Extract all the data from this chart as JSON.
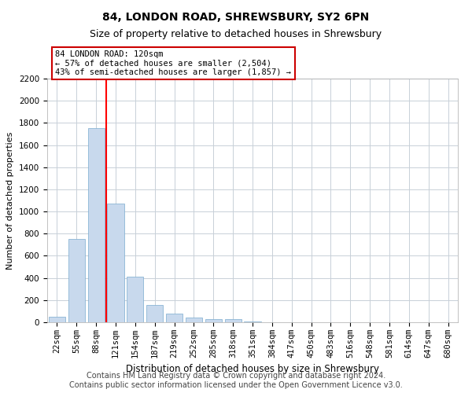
{
  "title": "84, LONDON ROAD, SHREWSBURY, SY2 6PN",
  "subtitle": "Size of property relative to detached houses in Shrewsbury",
  "xlabel": "Distribution of detached houses by size in Shrewsbury",
  "ylabel": "Number of detached properties",
  "bin_labels": [
    "22sqm",
    "55sqm",
    "88sqm",
    "121sqm",
    "154sqm",
    "187sqm",
    "219sqm",
    "252sqm",
    "285sqm",
    "318sqm",
    "351sqm",
    "384sqm",
    "417sqm",
    "450sqm",
    "483sqm",
    "516sqm",
    "548sqm",
    "581sqm",
    "614sqm",
    "647sqm",
    "680sqm"
  ],
  "bar_values": [
    50,
    750,
    1750,
    1075,
    415,
    155,
    80,
    40,
    30,
    25,
    5,
    2,
    2,
    0,
    0,
    0,
    0,
    0,
    0,
    0,
    0
  ],
  "bar_color": "#c8d9ed",
  "bar_edge_color": "#7aabcf",
  "red_line_index": 2.5,
  "annotation_line1": "84 LONDON ROAD: 120sqm",
  "annotation_line2": "← 57% of detached houses are smaller (2,504)",
  "annotation_line3": "43% of semi-detached houses are larger (1,857) →",
  "annotation_box_color": "#ffffff",
  "annotation_box_edge": "#cc0000",
  "ylim": [
    0,
    2200
  ],
  "yticks": [
    0,
    200,
    400,
    600,
    800,
    1000,
    1200,
    1400,
    1600,
    1800,
    2000,
    2200
  ],
  "footer_line1": "Contains HM Land Registry data © Crown copyright and database right 2024.",
  "footer_line2": "Contains public sector information licensed under the Open Government Licence v3.0.",
  "background_color": "#ffffff",
  "grid_color": "#c8d0d8",
  "title_fontsize": 10,
  "subtitle_fontsize": 9,
  "xlabel_fontsize": 8.5,
  "ylabel_fontsize": 8,
  "tick_fontsize": 7.5,
  "footer_fontsize": 7
}
